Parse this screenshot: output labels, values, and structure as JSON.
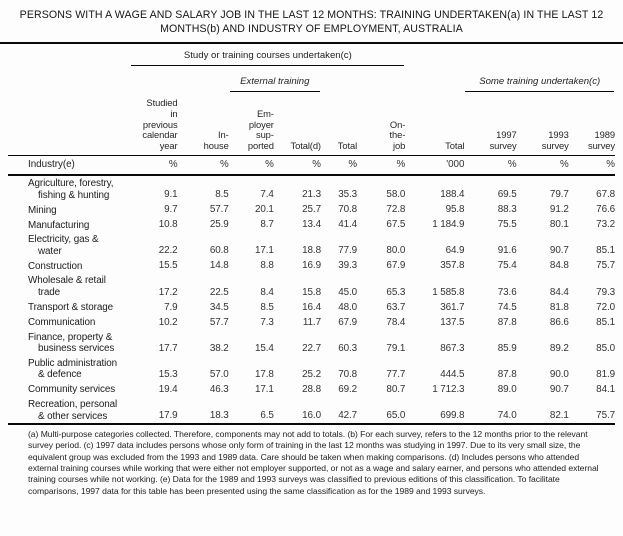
{
  "title": "PERSONS WITH A WAGE AND SALARY JOB IN THE LAST 12 MONTHS: TRAINING UNDERTAKEN(a) IN THE LAST 12 MONTHS(b) AND INDUSTRY OF EMPLOYMENT, AUSTRALIA",
  "header": {
    "group_study": "Study or training courses undertaken(c)",
    "group_external": "External training",
    "group_some": "Some training undertaken(c)",
    "row_label": "Industry(e)",
    "columns": [
      "Studied\nin\nprevious\ncalendar\nyear",
      "In-\nhouse",
      "Em-\nployer\nsup-\nported",
      "Total(d)",
      "Total",
      "On-\nthe-\njob",
      "Total",
      "1997\nsurvey",
      "1993\nsurvey",
      "1989\nsurvey"
    ],
    "units": [
      "%",
      "%",
      "%",
      "%",
      "%",
      "%",
      "'000",
      "%",
      "%",
      "%"
    ]
  },
  "rows": [
    {
      "industry": "Agriculture, forestry,\nfishing & hunting",
      "values": [
        "9.1",
        "8.5",
        "7.4",
        "21.3",
        "35.3",
        "58.0",
        "188.4",
        "69.5",
        "79.7",
        "67.8"
      ]
    },
    {
      "industry": "Mining",
      "values": [
        "9.7",
        "57.7",
        "20.1",
        "25.7",
        "70.8",
        "72.8",
        "95.8",
        "88.3",
        "91.2",
        "76.6"
      ]
    },
    {
      "industry": "Manufacturing",
      "values": [
        "10.8",
        "25.9",
        "8.7",
        "13.4",
        "41.4",
        "67.5",
        "1 184.9",
        "75.5",
        "80.1",
        "73.2"
      ]
    },
    {
      "industry": "Electricity, gas &\nwater",
      "values": [
        "22.2",
        "60.8",
        "17.1",
        "18.8",
        "77.9",
        "80.0",
        "64.9",
        "91.6",
        "90.7",
        "85.1"
      ]
    },
    {
      "industry": "Construction",
      "values": [
        "15.5",
        "14.8",
        "8.8",
        "16.9",
        "39.3",
        "67.9",
        "357.8",
        "75.4",
        "84.8",
        "75.7"
      ]
    },
    {
      "industry": "Wholesale & retail\ntrade",
      "values": [
        "17.2",
        "22.5",
        "8.4",
        "15.8",
        "45.0",
        "65.3",
        "1 585.8",
        "73.6",
        "84.4",
        "79.3"
      ]
    },
    {
      "industry": "Transport & storage",
      "values": [
        "7.9",
        "34.5",
        "8.5",
        "16.4",
        "48.0",
        "63.7",
        "361.7",
        "74.5",
        "81.8",
        "72.0"
      ]
    },
    {
      "industry": "Communication",
      "values": [
        "10.2",
        "57.7",
        "7.3",
        "11.7",
        "67.9",
        "78.4",
        "137.5",
        "87.8",
        "86.6",
        "85.1"
      ]
    },
    {
      "industry": "Finance, property &\nbusiness services",
      "values": [
        "17.7",
        "38.2",
        "15.4",
        "22.7",
        "60.3",
        "79.1",
        "867.3",
        "85.9",
        "89.2",
        "85.0"
      ]
    },
    {
      "industry": "Public administration\n& defence",
      "values": [
        "15.3",
        "57.0",
        "17.8",
        "25.2",
        "70.8",
        "77.7",
        "444.5",
        "87.8",
        "90.0",
        "81.9"
      ]
    },
    {
      "industry": "Community services",
      "values": [
        "19.4",
        "46.3",
        "17.1",
        "28.8",
        "69.2",
        "80.7",
        "1 712.3",
        "89.0",
        "90.7",
        "84.1"
      ]
    },
    {
      "industry": "Recreation, personal\n& other services",
      "values": [
        "17.9",
        "18.3",
        "6.5",
        "16.0",
        "42.7",
        "65.0",
        "699.8",
        "74.0",
        "82.1",
        "75.7"
      ]
    }
  ],
  "footnotes": "(a) Multi-purpose categories collected. Therefore, components may not add to totals. (b) For each survey, refers to the 12 months prior to the relevant survey period. (c) 1997 data includes persons whose only form of training in the last 12 months was studying in 1997. Due to its very small size, the equivalent group was excluded from the 1993 and 1989 data. Care should  be taken when making comparisons. (d) Includes persons who attended external training courses while working that were either not employer supported, or not as a wage and salary earner, and persons who attended external training courses while not working. (e) Data for the 1989 and 1993 surveys was classified to previous editions of this classification. To facilitate comparisons, 1997 data for this table has been presented using the same classification as for the 1989 and 1993 surveys."
}
